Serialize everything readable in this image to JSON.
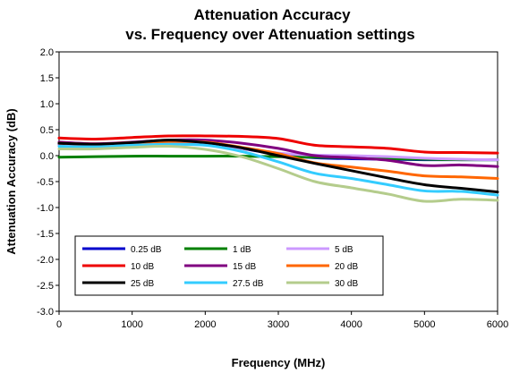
{
  "chart_data": {
    "type": "line",
    "title": "Attenuation Accuracy",
    "subtitle": "vs. Frequency over Attenuation settings",
    "xlabel": "Frequency (MHz)",
    "ylabel": "Attenuation Accuracy (dB)",
    "xlim": [
      0,
      6000
    ],
    "ylim": [
      -3.0,
      2.0
    ],
    "x_ticks": [
      "0",
      "1000",
      "2000",
      "3000",
      "4000",
      "5000",
      "6000"
    ],
    "y_ticks": [
      "2.0",
      "1.5",
      "1.0",
      "0.5",
      "0.0",
      "-0.5",
      "-1.0",
      "-1.5",
      "-2.0",
      "-2.5",
      "-3.0"
    ],
    "grid": false,
    "legend_position": "bottom-left",
    "x": [
      0,
      500,
      1000,
      1500,
      2000,
      2500,
      3000,
      3500,
      4000,
      4500,
      5000,
      5500,
      6000
    ],
    "series": [
      {
        "name": "0.25 dB",
        "color": "#0000cc",
        "values": [
          0.22,
          0.2,
          0.24,
          0.28,
          0.26,
          0.14,
          0.02,
          -0.04,
          -0.06,
          -0.07,
          -0.08,
          -0.08,
          -0.08
        ]
      },
      {
        "name": "1 dB",
        "color": "#008000",
        "values": [
          -0.03,
          -0.02,
          -0.01,
          -0.01,
          -0.01,
          -0.01,
          -0.02,
          -0.03,
          -0.04,
          -0.06,
          -0.07,
          -0.08,
          -0.08
        ]
      },
      {
        "name": "5 dB",
        "color": "#cc99ff",
        "values": [
          0.2,
          0.18,
          0.21,
          0.24,
          0.22,
          0.14,
          0.05,
          0.01,
          0.0,
          -0.02,
          -0.05,
          -0.07,
          -0.08
        ]
      },
      {
        "name": "10 dB",
        "color": "#ee0000",
        "values": [
          0.34,
          0.32,
          0.35,
          0.38,
          0.38,
          0.37,
          0.33,
          0.2,
          0.17,
          0.14,
          0.07,
          0.06,
          0.05
        ]
      },
      {
        "name": "15 dB",
        "color": "#800080",
        "values": [
          0.26,
          0.23,
          0.26,
          0.3,
          0.3,
          0.24,
          0.14,
          0.0,
          -0.04,
          -0.09,
          -0.19,
          -0.18,
          -0.21
        ]
      },
      {
        "name": "20 dB",
        "color": "#ff6600",
        "values": [
          0.24,
          0.22,
          0.25,
          0.27,
          0.26,
          0.16,
          0.04,
          -0.14,
          -0.22,
          -0.3,
          -0.39,
          -0.41,
          -0.44
        ]
      },
      {
        "name": "25 dB",
        "color": "#000000",
        "values": [
          0.24,
          0.22,
          0.25,
          0.3,
          0.25,
          0.15,
          0.0,
          -0.15,
          -0.29,
          -0.43,
          -0.56,
          -0.63,
          -0.7
        ]
      },
      {
        "name": "27.5 dB",
        "color": "#33ccff",
        "values": [
          0.18,
          0.17,
          0.2,
          0.22,
          0.2,
          0.08,
          -0.12,
          -0.34,
          -0.44,
          -0.56,
          -0.68,
          -0.69,
          -0.76
        ]
      },
      {
        "name": "30 dB",
        "color": "#b4cc8c",
        "values": [
          0.13,
          0.13,
          0.16,
          0.18,
          0.12,
          -0.02,
          -0.25,
          -0.5,
          -0.62,
          -0.74,
          -0.88,
          -0.84,
          -0.86
        ]
      }
    ]
  }
}
